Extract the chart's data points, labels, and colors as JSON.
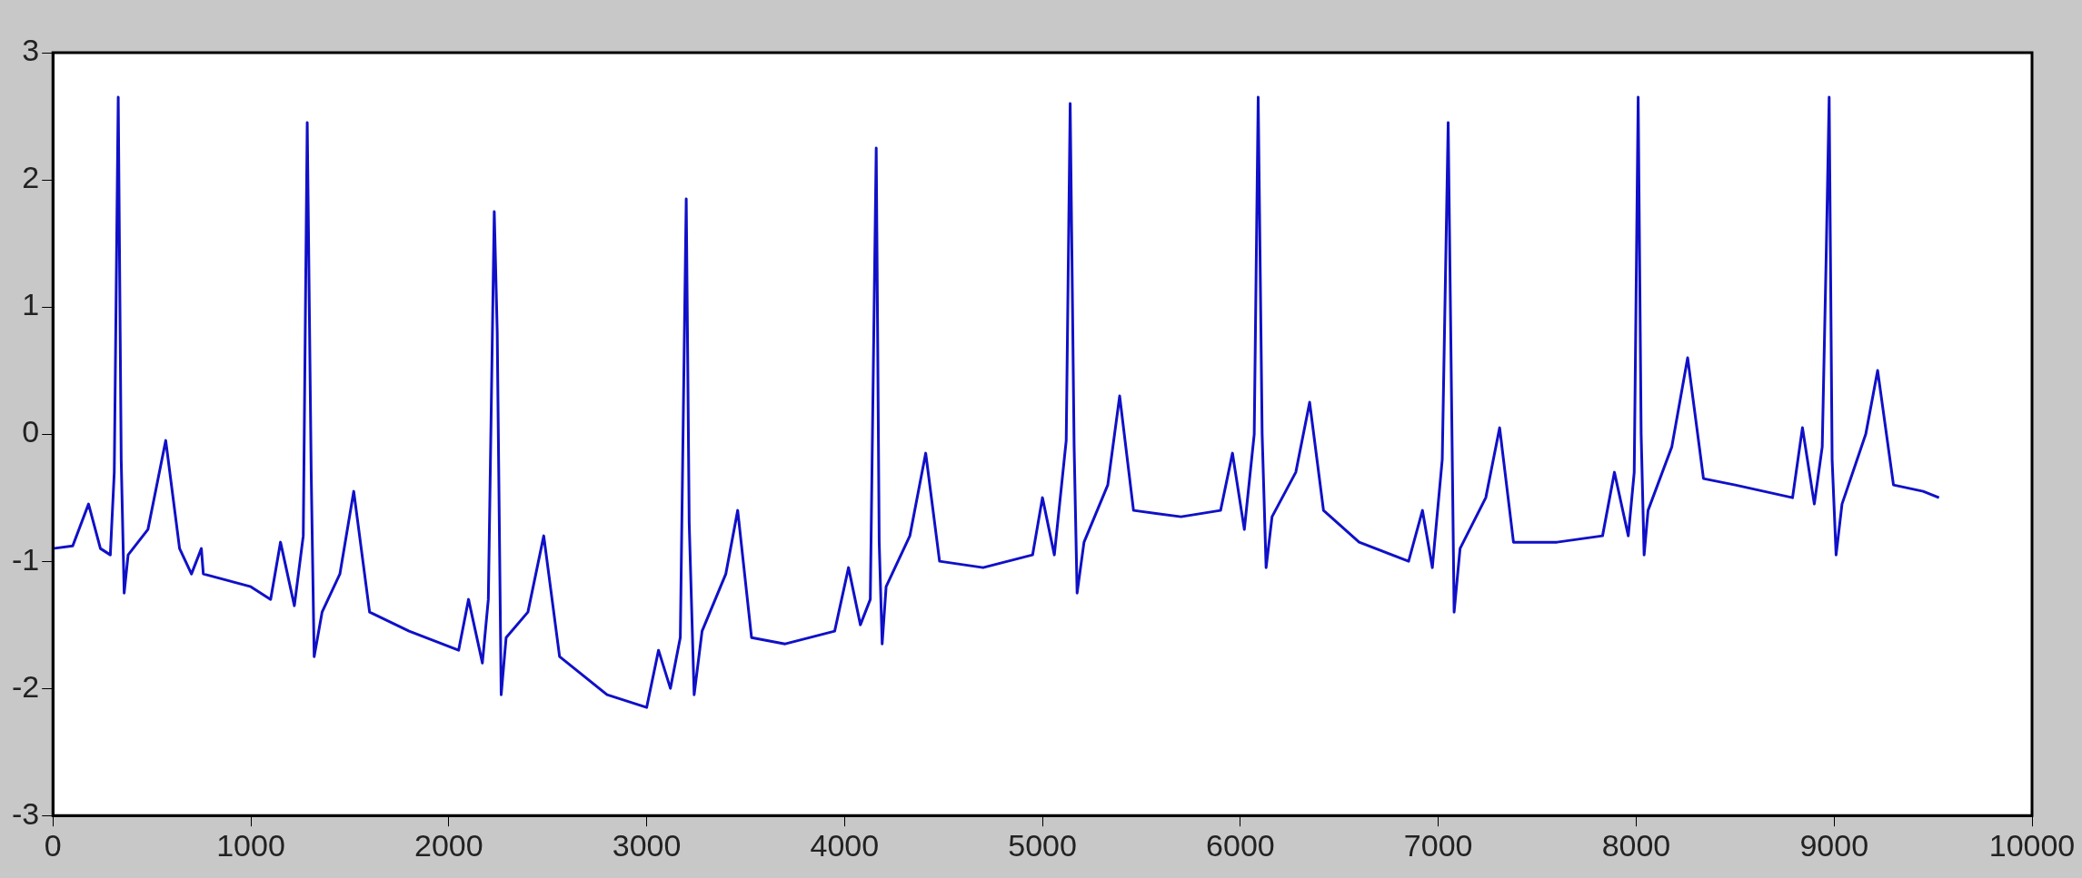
{
  "chart_data": {
    "type": "line",
    "xlim": [
      0,
      10000
    ],
    "xticks": [
      0,
      1000,
      2000,
      3000,
      4000,
      5000,
      6000,
      7000,
      8000,
      9000,
      10000
    ],
    "ylim": [
      -3,
      3
    ],
    "yticks": [
      -3,
      -2,
      -1,
      0,
      1,
      2,
      3
    ],
    "grid": false,
    "legend": false,
    "marker": "none",
    "line_style": "solid",
    "series": [
      {
        "color": "#1010c8",
        "x": [
          0,
          100,
          180,
          240,
          290,
          310,
          330,
          345,
          360,
          380,
          480,
          570,
          640,
          700,
          750,
          760,
          1000,
          1100,
          1150,
          1220,
          1265,
          1285,
          1305,
          1320,
          1360,
          1450,
          1520,
          1600,
          1800,
          2050,
          2100,
          2170,
          2200,
          2230,
          2245,
          2265,
          2290,
          2400,
          2480,
          2560,
          2800,
          3000,
          3060,
          3120,
          3170,
          3200,
          3215,
          3240,
          3280,
          3400,
          3460,
          3530,
          3700,
          3950,
          4020,
          4080,
          4130,
          4160,
          4175,
          4190,
          4210,
          4330,
          4410,
          4480,
          4700,
          4950,
          5000,
          5060,
          5120,
          5140,
          5160,
          5175,
          5210,
          5330,
          5390,
          5460,
          5700,
          5900,
          5960,
          6020,
          6070,
          6090,
          6110,
          6130,
          6160,
          6280,
          6350,
          6420,
          6600,
          6850,
          6920,
          6970,
          7020,
          7050,
          7070,
          7080,
          7110,
          7240,
          7310,
          7380,
          7600,
          7830,
          7890,
          7960,
          7990,
          8010,
          8025,
          8040,
          8060,
          8180,
          8260,
          8340,
          8500,
          8790,
          8840,
          8900,
          8940,
          8960,
          8975,
          8990,
          9010,
          9040,
          9160,
          9220,
          9300,
          9450,
          9530
        ],
        "values": [
          -0.9,
          -0.88,
          -0.55,
          -0.9,
          -0.95,
          -0.3,
          2.65,
          -0.2,
          -1.25,
          -0.95,
          -0.75,
          -0.05,
          -0.9,
          -1.1,
          -0.9,
          -1.1,
          -1.2,
          -1.3,
          -0.85,
          -1.35,
          -0.8,
          2.45,
          -0.3,
          -1.75,
          -1.4,
          -1.1,
          -0.45,
          -1.4,
          -1.55,
          -1.7,
          -1.3,
          -1.8,
          -1.3,
          1.75,
          0.8,
          -2.05,
          -1.6,
          -1.4,
          -0.8,
          -1.75,
          -2.05,
          -2.15,
          -1.7,
          -2.0,
          -1.6,
          1.85,
          -0.7,
          -2.05,
          -1.55,
          -1.1,
          -0.6,
          -1.6,
          -1.65,
          -1.55,
          -1.05,
          -1.5,
          -1.3,
          2.25,
          -0.85,
          -1.65,
          -1.2,
          -0.8,
          -0.15,
          -1.0,
          -1.05,
          -0.95,
          -0.5,
          -0.95,
          -0.05,
          2.6,
          -0.1,
          -1.25,
          -0.85,
          -0.4,
          0.3,
          -0.6,
          -0.65,
          -0.6,
          -0.15,
          -0.75,
          0.0,
          2.65,
          0.0,
          -1.05,
          -0.65,
          -0.3,
          0.25,
          -0.6,
          -0.85,
          -1.0,
          -0.6,
          -1.05,
          -0.2,
          2.45,
          -0.1,
          -1.4,
          -0.9,
          -0.5,
          0.05,
          -0.85,
          -0.85,
          -0.8,
          -0.3,
          -0.8,
          -0.3,
          2.65,
          0.0,
          -0.95,
          -0.6,
          -0.1,
          0.6,
          -0.35,
          -0.4,
          -0.5,
          0.05,
          -0.55,
          -0.1,
          1.4,
          2.65,
          -0.2,
          -0.95,
          -0.55,
          0.0,
          0.5,
          -0.4,
          -0.45,
          -0.5
        ]
      }
    ]
  }
}
